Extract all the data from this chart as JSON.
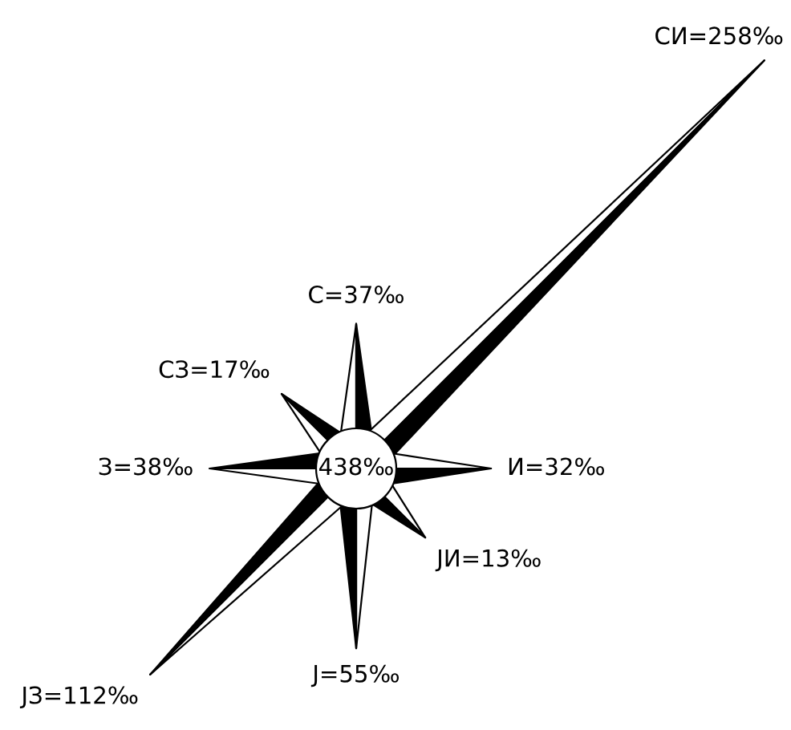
{
  "chart_data": {
    "type": "other",
    "categories": [
      "С=",
      "СИ=",
      "И=",
      "ЈИ=",
      "Ј=",
      "ЈЗ=",
      "З=",
      "СЗ="
    ],
    "values": [
      37,
      258,
      32,
      13,
      55,
      112,
      38,
      17
    ],
    "value_labels": [
      "37‰",
      "258‰",
      "32‰",
      "13‰",
      "55‰",
      "112‰",
      "38‰",
      "17‰"
    ],
    "annotations": [
      "438‰"
    ]
  }
}
